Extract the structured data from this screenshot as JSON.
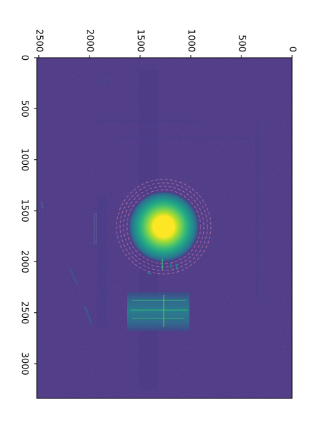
{
  "chart_data": {
    "type": "heatmap",
    "title": "",
    "xlabel": "",
    "ylabel": "",
    "orientation": "rotated 90 degrees clockwise",
    "colormap": "viridis",
    "column_axis": {
      "ticks": [
        0,
        500,
        1000,
        1500,
        2000,
        2500
      ],
      "labels": [
        "0",
        "500",
        "1000",
        "1500",
        "2000",
        "2500"
      ],
      "range": [
        0,
        2520
      ]
    },
    "row_axis": {
      "ticks": [
        0,
        500,
        1000,
        1500,
        2000,
        2500,
        3000
      ],
      "labels": [
        "0",
        "500",
        "1000",
        "1500",
        "2000",
        "2500",
        "3000"
      ],
      "range": [
        0,
        3340
      ]
    },
    "features": {
      "bright_spot": {
        "center": [
          1260,
          1640
        ],
        "radius": 290,
        "peak_color": "#fde725"
      },
      "halo_rings": [
        360,
        400,
        440,
        470
      ],
      "bright_band": {
        "column_range": [
          1000,
          1600
        ],
        "row_range": [
          2330,
          2650
        ]
      }
    },
    "background_color": "#46327e",
    "grid": false,
    "legend": "none"
  }
}
